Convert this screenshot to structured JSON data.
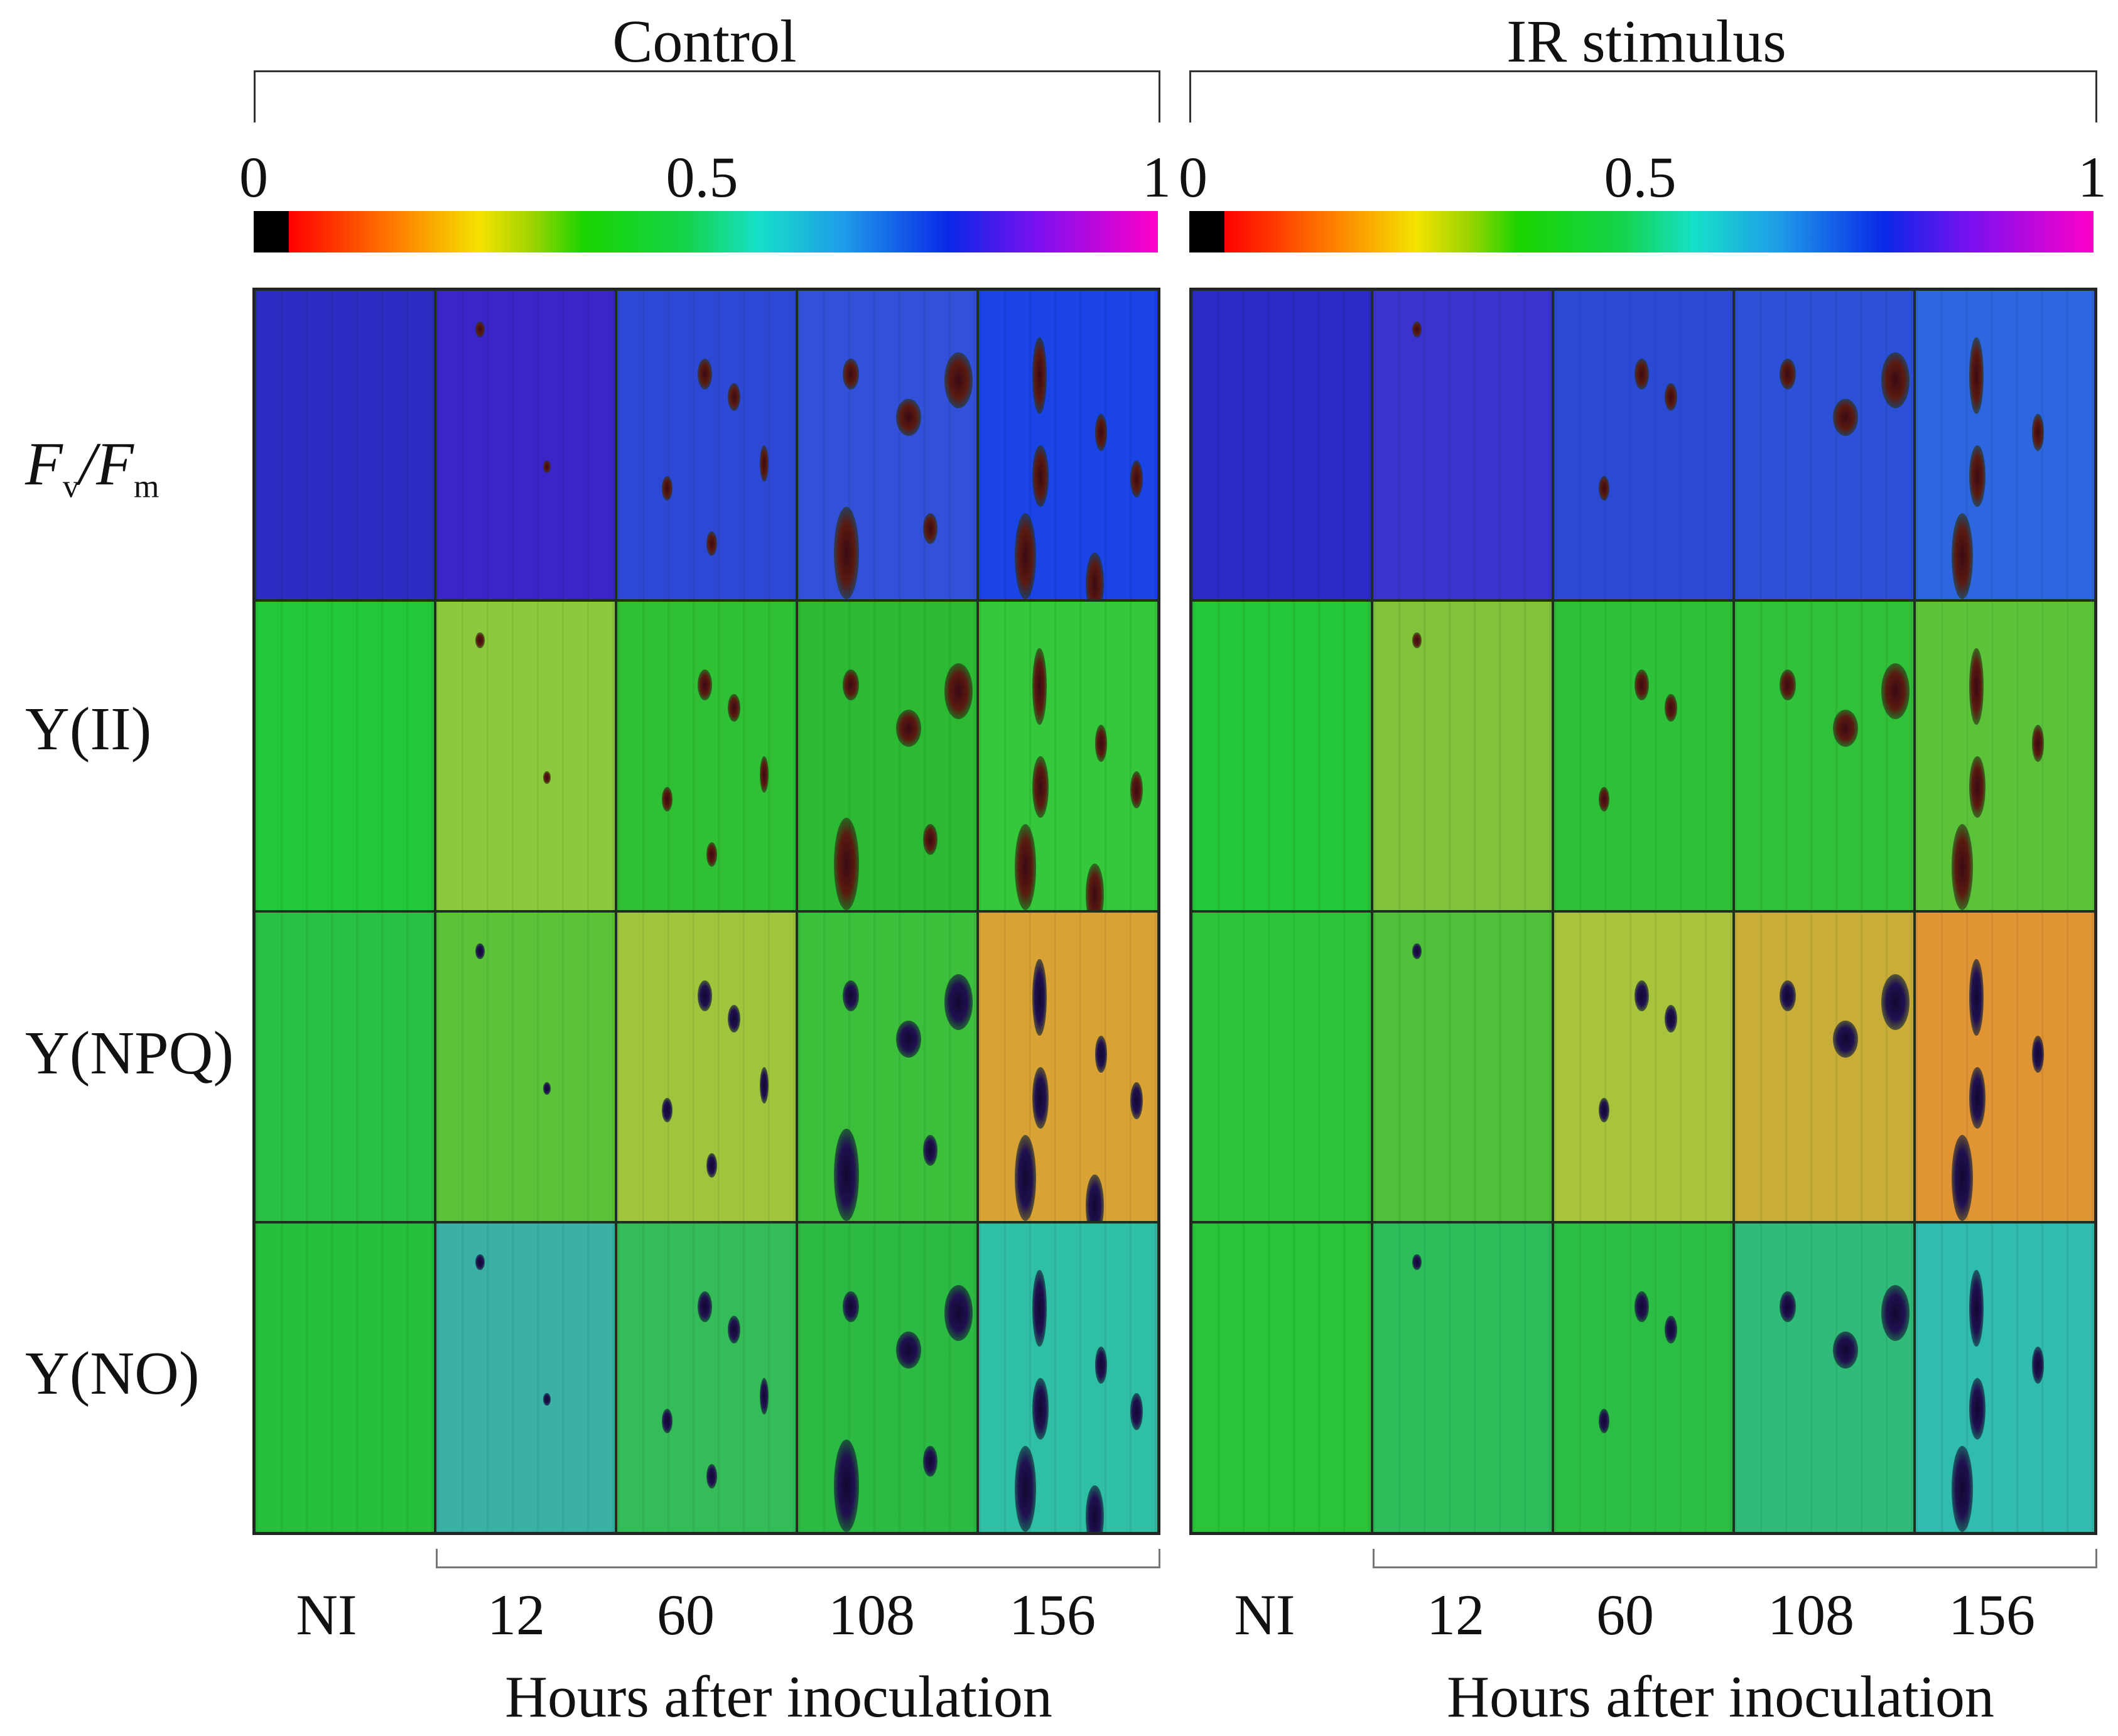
{
  "panels": [
    {
      "title": "Control",
      "colorbar": {
        "min_label": "0",
        "mid_label": "0.5",
        "max_label": "1"
      },
      "columns": [
        "NI",
        "12",
        "60",
        "108",
        "156"
      ],
      "xlabel": "Hours after inoculation",
      "rows": [
        {
          "cells": [
            "#2a2cc2",
            "#3a26c8",
            "#2e48d6",
            "#3250d8",
            "#1a44e6"
          ],
          "lesions": [
            0,
            1,
            2,
            3,
            4
          ]
        },
        {
          "cells": [
            "#22c83a",
            "#8cc93c",
            "#2fc036",
            "#2cba34",
            "#34c83a"
          ],
          "lesions": [
            0,
            1,
            2,
            3,
            4
          ]
        },
        {
          "cells": [
            "#28c046",
            "#5cc23a",
            "#a0c43c",
            "#3cc03c",
            "#d8a234"
          ],
          "lesions": [
            0,
            1,
            2,
            3,
            4
          ]
        },
        {
          "cells": [
            "#24c03c",
            "#3ab0a6",
            "#34bc58",
            "#2cba44",
            "#2ebfa4"
          ],
          "lesions": [
            0,
            1,
            2,
            3,
            4
          ]
        }
      ]
    },
    {
      "title": "IR stimulus",
      "colorbar": {
        "min_label": "0",
        "mid_label": "0.5",
        "max_label": "1"
      },
      "columns": [
        "NI",
        "12",
        "60",
        "108",
        "156"
      ],
      "xlabel": "Hours after inoculation",
      "rows": [
        {
          "cells": [
            "#2c2ac6",
            "#3a34cc",
            "#2a4ad4",
            "#2c50d6",
            "#2e66e0"
          ],
          "lesions": [
            0,
            1,
            2,
            3,
            4
          ]
        },
        {
          "cells": [
            "#24c63a",
            "#80c23c",
            "#2ec038",
            "#30c03a",
            "#5cc23a"
          ],
          "lesions": [
            0,
            1,
            2,
            3,
            4
          ]
        },
        {
          "cells": [
            "#2cc43a",
            "#50c03a",
            "#a8c43c",
            "#c8ae38",
            "#e09434"
          ],
          "lesions": [
            0,
            1,
            2,
            3,
            4
          ]
        },
        {
          "cells": [
            "#28c43a",
            "#2cbe5a",
            "#2cbe44",
            "#30bc78",
            "#30bcae"
          ],
          "lesions": [
            0,
            1,
            2,
            3,
            4
          ]
        }
      ]
    }
  ],
  "row_labels": [
    {
      "main": "F",
      "sub": "v",
      "sep": "/",
      "main2": "F",
      "sub2": "m"
    },
    {
      "text": "Y(II)"
    },
    {
      "text": "Y(NPQ)"
    },
    {
      "text": "Y(NO)"
    }
  ]
}
